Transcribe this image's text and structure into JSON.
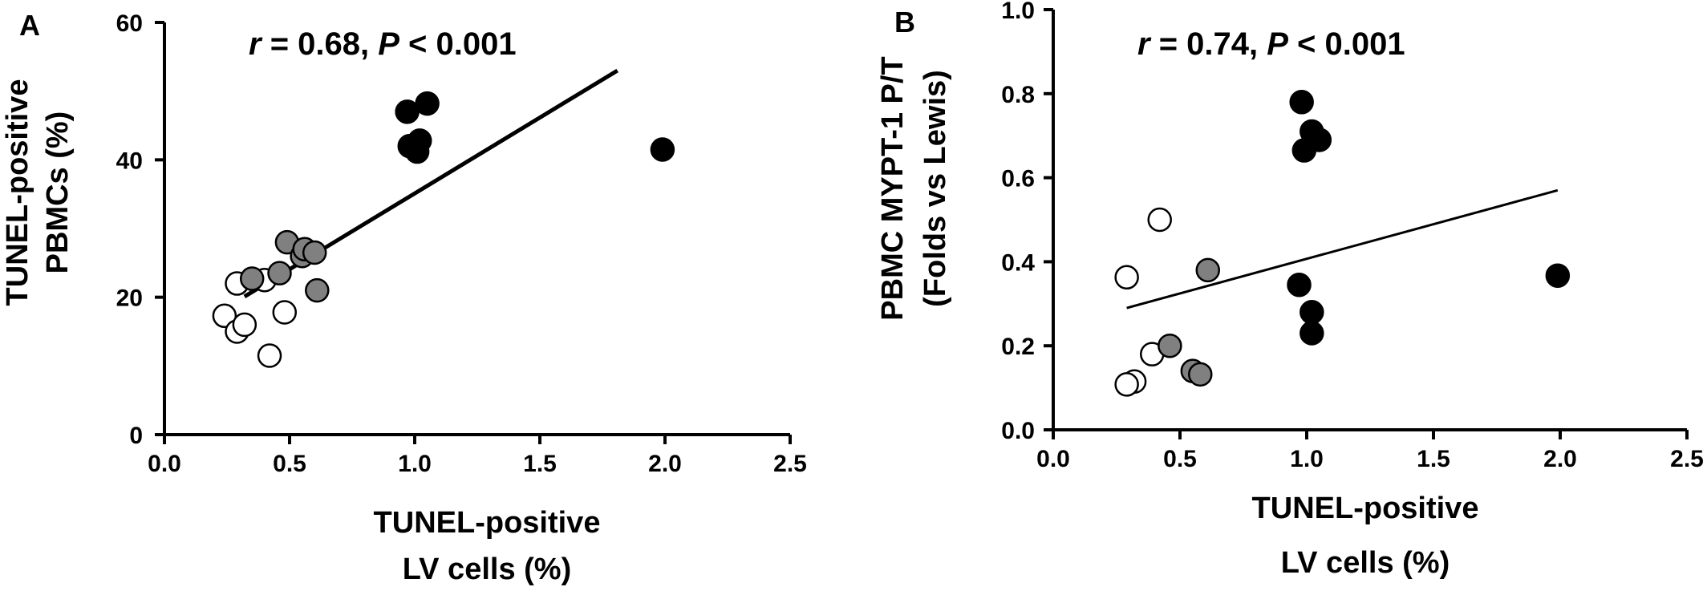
{
  "chart_data": [
    {
      "type": "scatter",
      "panel_label": "A",
      "annotation": {
        "r_symbol": "r",
        "r_text": " = 0.68, ",
        "p_symbol": "P",
        "p_text": " < 0.001"
      },
      "xlabel": [
        "TUNEL-positive",
        "LV cells (%)"
      ],
      "ylabel": [
        "TUNEL-positive",
        "PBMCs (%)"
      ],
      "xlim": [
        0,
        2.5
      ],
      "ylim": [
        0,
        60
      ],
      "x_ticks": [
        "0.0",
        "0.5",
        "1.0",
        "1.5",
        "2.0",
        "2.5"
      ],
      "y_ticks": [
        "0",
        "20",
        "40",
        "60"
      ],
      "grid": false,
      "series": [
        {
          "fill": "#ffffff",
          "points": [
            [
              0.24,
              17.3
            ],
            [
              0.29,
              22.0
            ],
            [
              0.29,
              15.0
            ],
            [
              0.32,
              16.0
            ],
            [
              0.42,
              11.5
            ],
            [
              0.48,
              17.8
            ],
            [
              0.4,
              22.5
            ]
          ]
        },
        {
          "fill": "#808080",
          "points": [
            [
              0.35,
              22.7
            ],
            [
              0.46,
              23.5
            ],
            [
              0.49,
              28.0
            ],
            [
              0.55,
              26.0
            ],
            [
              0.56,
              27.0
            ],
            [
              0.6,
              26.5
            ],
            [
              0.61,
              21.0
            ]
          ]
        },
        {
          "fill": "#000000",
          "points": [
            [
              0.97,
              47.0
            ],
            [
              0.98,
              42.0
            ],
            [
              1.01,
              41.2
            ],
            [
              1.02,
              42.8
            ],
            [
              1.05,
              48.2
            ],
            [
              1.99,
              41.5
            ]
          ]
        }
      ],
      "regression": {
        "x": [
          0.32,
          1.81
        ],
        "y": [
          20.1,
          53.0
        ],
        "stroke_width": 5
      }
    },
    {
      "type": "scatter",
      "panel_label": "B",
      "annotation": {
        "r_symbol": "r",
        "r_text": " = 0.74, ",
        "p_symbol": "P",
        "p_text": " < 0.001"
      },
      "xlabel": [
        "TUNEL-positive",
        "LV cells (%)"
      ],
      "ylabel": [
        "PBMC MYPT-1 P/T",
        "(Folds vs Lewis)"
      ],
      "xlim": [
        0,
        2.5
      ],
      "ylim": [
        0,
        1.0
      ],
      "x_ticks": [
        "0.0",
        "0.5",
        "1.0",
        "1.5",
        "2.0",
        "2.5"
      ],
      "y_ticks": [
        "0.0",
        "0.2",
        "0.4",
        "0.6",
        "0.8",
        "1.0"
      ],
      "grid": false,
      "series": [
        {
          "fill": "#ffffff",
          "points": [
            [
              0.29,
              0.363
            ],
            [
              0.42,
              0.5
            ],
            [
              0.39,
              0.18
            ],
            [
              0.32,
              0.115
            ],
            [
              0.29,
              0.108
            ]
          ]
        },
        {
          "fill": "#808080",
          "points": [
            [
              0.61,
              0.38
            ],
            [
              0.46,
              0.2
            ],
            [
              0.55,
              0.14
            ],
            [
              0.58,
              0.132
            ]
          ]
        },
        {
          "fill": "#000000",
          "points": [
            [
              0.98,
              0.78
            ],
            [
              1.02,
              0.71
            ],
            [
              1.05,
              0.69
            ],
            [
              0.99,
              0.665
            ],
            [
              0.97,
              0.345
            ],
            [
              1.02,
              0.28
            ],
            [
              1.02,
              0.23
            ],
            [
              1.99,
              0.367
            ]
          ]
        }
      ],
      "regression": {
        "x": [
          0.29,
          1.99
        ],
        "y": [
          0.29,
          0.57
        ],
        "stroke_width": 3
      }
    }
  ]
}
